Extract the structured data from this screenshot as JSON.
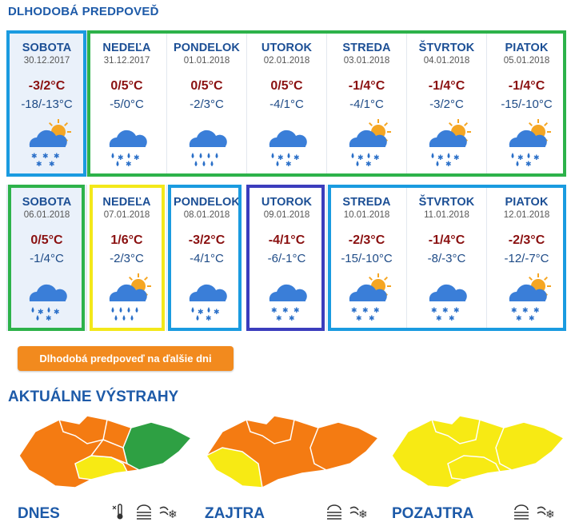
{
  "forecast_title": "DLHODOBÁ PREDPOVEĎ",
  "week1": [
    {
      "name": "SOBOTA",
      "date": "30.12.2017",
      "hi": "-3/2°C",
      "lo": "-18/-13°C",
      "icon": "snow-sun-cloud-icon"
    },
    {
      "name": "NEDEĽA",
      "date": "31.12.2017",
      "hi": "0/5°C",
      "lo": "-5/0°C",
      "icon": "rain-snow-cloud-icon"
    },
    {
      "name": "PONDELOK",
      "date": "01.01.2018",
      "hi": "0/5°C",
      "lo": "-2/3°C",
      "icon": "rain-cloud-icon"
    },
    {
      "name": "UTOROK",
      "date": "02.01.2018",
      "hi": "0/5°C",
      "lo": "-4/1°C",
      "icon": "rain-snow-cloud-icon"
    },
    {
      "name": "STREDA",
      "date": "03.01.2018",
      "hi": "-1/4°C",
      "lo": "-4/1°C",
      "icon": "rain-snow-sun-cloud-icon"
    },
    {
      "name": "ŠTVRTOK",
      "date": "04.01.2018",
      "hi": "-1/4°C",
      "lo": "-3/2°C",
      "icon": "rain-snow-sun-cloud-icon"
    },
    {
      "name": "PIATOK",
      "date": "05.01.2018",
      "hi": "-1/4°C",
      "lo": "-15/-10°C",
      "icon": "rain-snow-sun-cloud-icon"
    }
  ],
  "week2": [
    {
      "name": "SOBOTA",
      "date": "06.01.2018",
      "hi": "0/5°C",
      "lo": "-1/4°C",
      "icon": "rain-snow-cloud-icon"
    },
    {
      "name": "NEDEĽA",
      "date": "07.01.2018",
      "hi": "1/6°C",
      "lo": "-2/3°C",
      "icon": "rain-sun-cloud-icon"
    },
    {
      "name": "PONDELOK",
      "date": "08.01.2018",
      "hi": "-3/2°C",
      "lo": "-4/1°C",
      "icon": "rain-snow-cloud-icon"
    },
    {
      "name": "UTOROK",
      "date": "09.01.2018",
      "hi": "-4/1°C",
      "lo": "-6/-1°C",
      "icon": "snow-cloud-icon"
    },
    {
      "name": "STREDA",
      "date": "10.01.2018",
      "hi": "-2/3°C",
      "lo": "-15/-10°C",
      "icon": "snow-sun-cloud-icon"
    },
    {
      "name": "ŠTVRTOK",
      "date": "11.01.2018",
      "hi": "-1/4°C",
      "lo": "-8/-3°C",
      "icon": "snow-cloud-icon"
    },
    {
      "name": "PIATOK",
      "date": "12.01.2018",
      "hi": "-2/3°C",
      "lo": "-12/-7°C",
      "icon": "snow-sun-cloud-icon"
    }
  ],
  "frame_colors": {
    "blue": "#1a9be0",
    "green": "#2db24a",
    "yellow": "#f3e81a",
    "navy": "#3b3dbd"
  },
  "more_button": "Dlhodobá predpoveď na ďalšie dni",
  "warnings_title": "AKTUÁLNE VÝSTRAHY",
  "warning_colors": {
    "orange": "#f47b12",
    "yellow": "#f7ea14",
    "green": "#2ea043"
  },
  "maps": [
    {
      "label": "DNES",
      "icons": [
        "frost-thermometer-icon",
        "fog-icon",
        "wind-snow-icon"
      ]
    },
    {
      "label": "ZAJTRA",
      "icons": [
        "fog-icon",
        "wind-snow-icon"
      ]
    },
    {
      "label": "POZAJTRA",
      "icons": [
        "fog-icon",
        "wind-snow-icon"
      ]
    }
  ]
}
